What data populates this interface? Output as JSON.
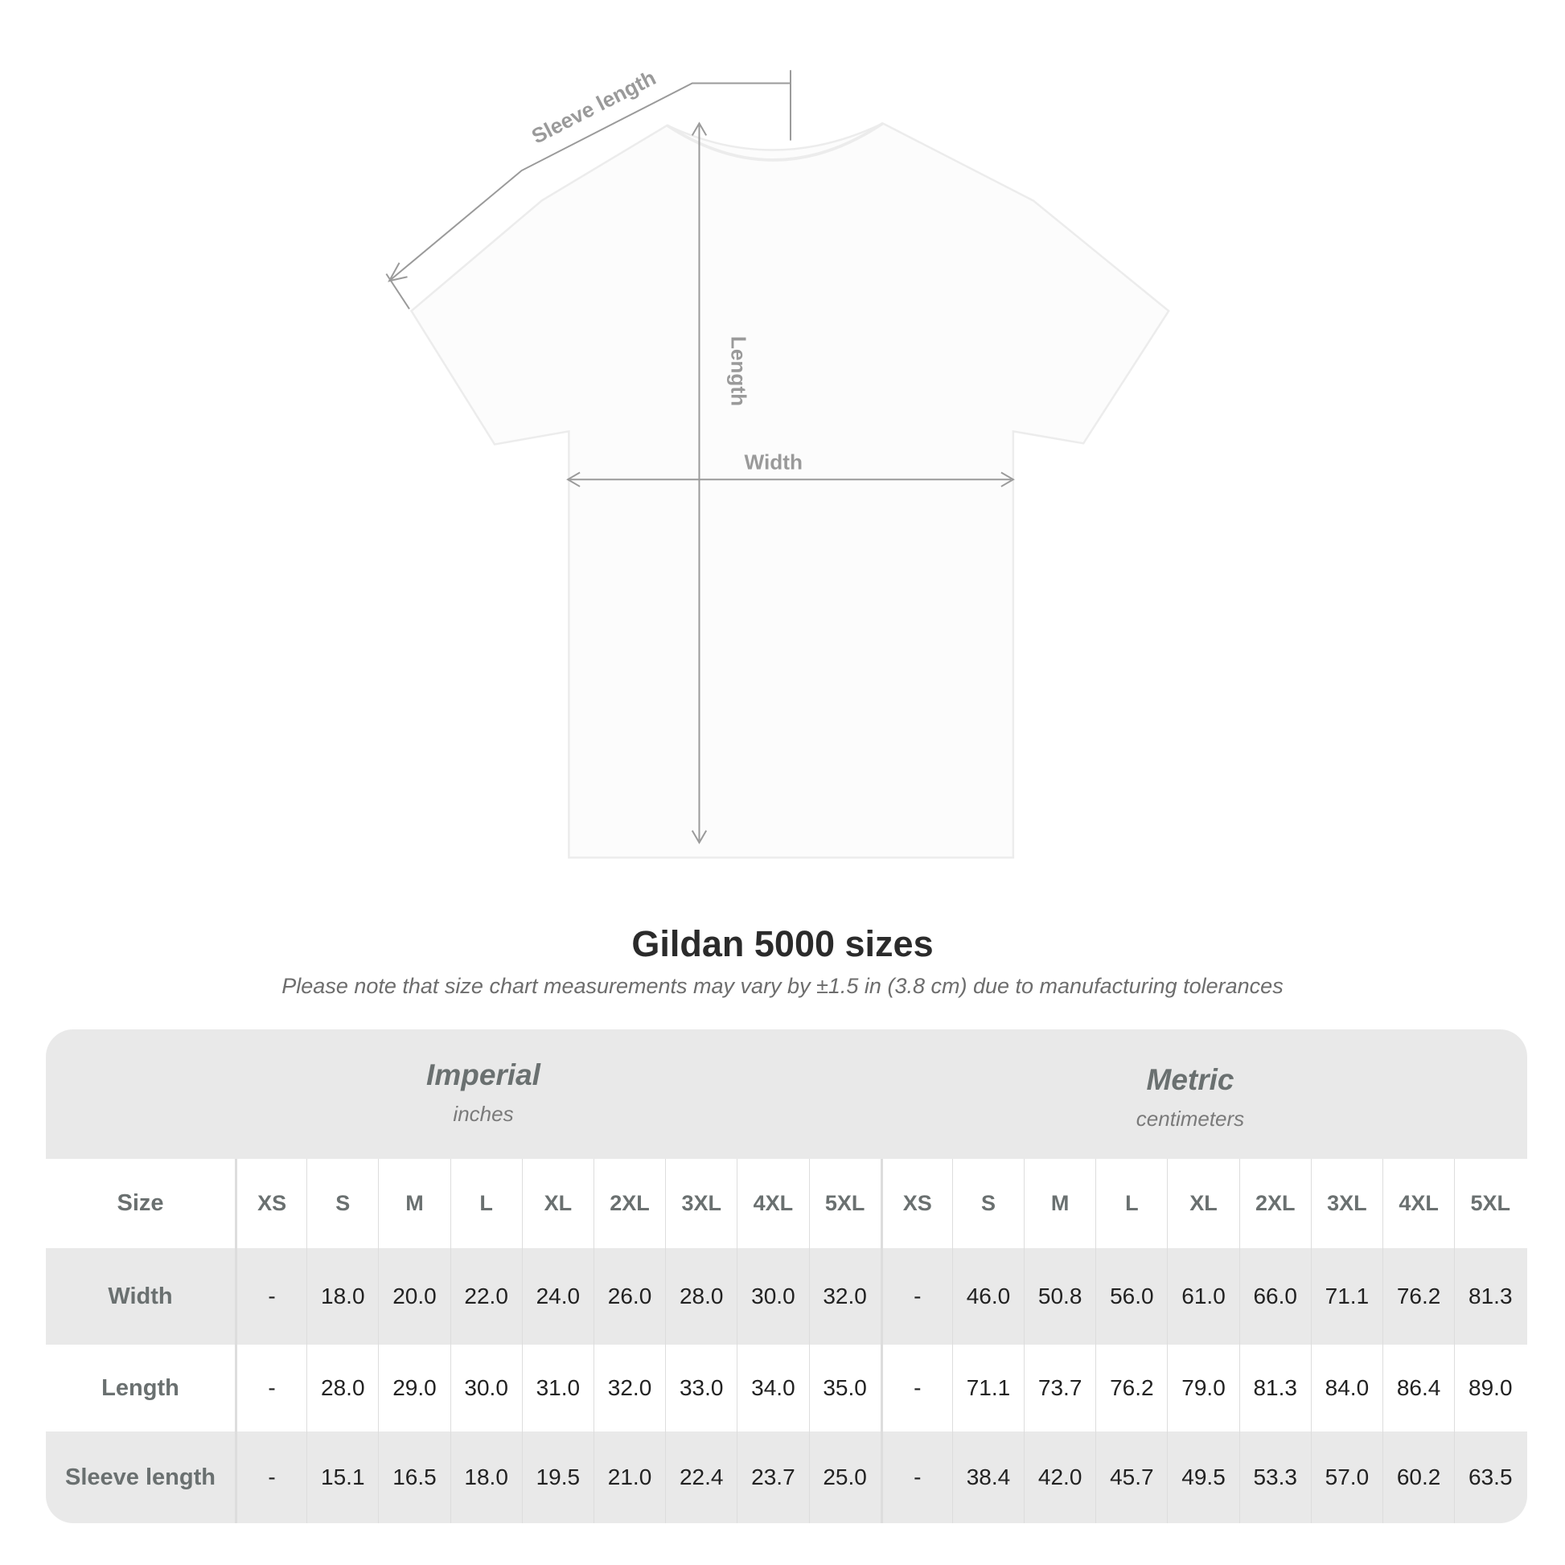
{
  "diagram": {
    "labels": {
      "sleeve": "Sleeve length",
      "length": "Length",
      "width": "Width"
    },
    "line_color": "#9a9a9a"
  },
  "title": "Gildan 5000 sizes",
  "subtitle": "Please note that size chart measurements may vary by ±1.5 in (3.8 cm) due to manufacturing tolerances",
  "table": {
    "imperial": {
      "name": "Imperial",
      "unit": "inches"
    },
    "metric": {
      "name": "Metric",
      "unit": "centimeters"
    },
    "size_label": "Size",
    "sizes": [
      "XS",
      "S",
      "M",
      "L",
      "XL",
      "2XL",
      "3XL",
      "4XL",
      "5XL"
    ],
    "rows": [
      {
        "label": "Width",
        "imperial": [
          "-",
          "18.0",
          "20.0",
          "22.0",
          "24.0",
          "26.0",
          "28.0",
          "30.0",
          "32.0"
        ],
        "metric": [
          "-",
          "46.0",
          "50.8",
          "56.0",
          "61.0",
          "66.0",
          "71.1",
          "76.2",
          "81.3"
        ]
      },
      {
        "label": "Length",
        "imperial": [
          "-",
          "28.0",
          "29.0",
          "30.0",
          "31.0",
          "32.0",
          "33.0",
          "34.0",
          "35.0"
        ],
        "metric": [
          "-",
          "71.1",
          "73.7",
          "76.2",
          "79.0",
          "81.3",
          "84.0",
          "86.4",
          "89.0"
        ]
      },
      {
        "label": "Sleeve length",
        "imperial": [
          "-",
          "15.1",
          "16.5",
          "18.0",
          "19.5",
          "21.0",
          "22.4",
          "23.7",
          "25.0"
        ],
        "metric": [
          "-",
          "38.4",
          "42.0",
          "45.7",
          "49.5",
          "53.3",
          "57.0",
          "60.2",
          "63.5"
        ]
      }
    ],
    "colors": {
      "band": "#e9e9e9",
      "header_text": "#6a7070"
    }
  }
}
